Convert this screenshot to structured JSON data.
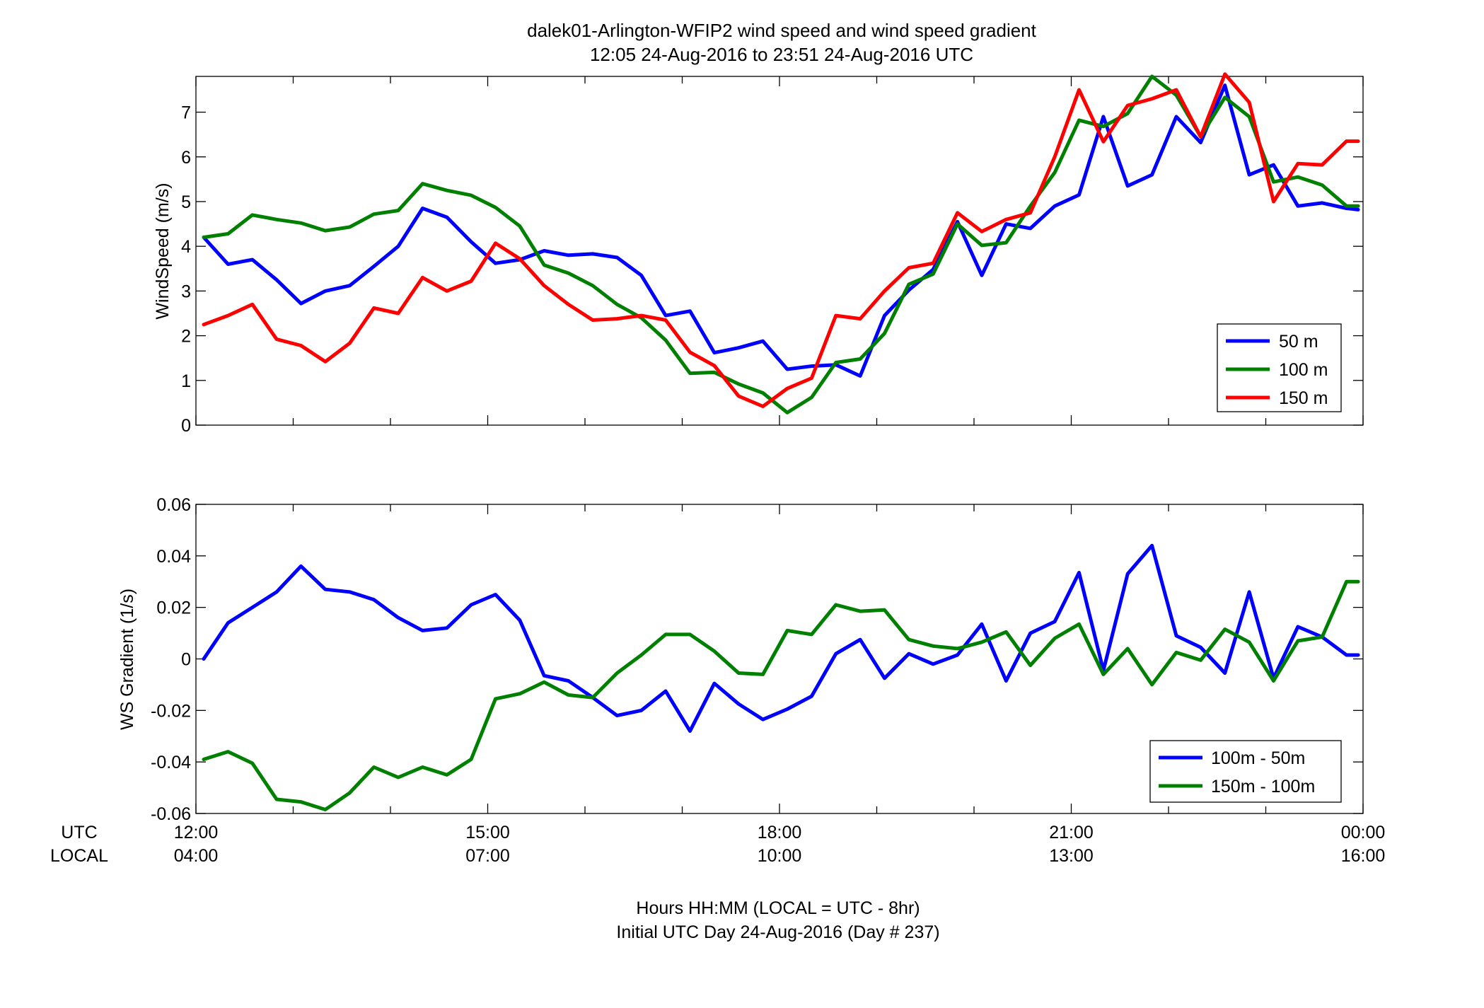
{
  "figure": {
    "title_line1": "dalek01-Arlington-WFIP2  wind speed and wind speed gradient",
    "title_line2": "12:05 24-Aug-2016 to 23:51 24-Aug-2016  UTC",
    "xlabel_line1": "Hours HH:MM  (LOCAL = UTC - 8hr)",
    "xlabel_line2": "Initial UTC Day 24-Aug-2016 (Day # 237)",
    "utc_label": "UTC",
    "local_label": "LOCAL",
    "x_ticks_utc": [
      "12:00",
      "15:00",
      "18:00",
      "21:00",
      "00:00"
    ],
    "x_ticks_local": [
      "04:00",
      "07:00",
      "10:00",
      "13:00",
      "16:00"
    ]
  },
  "chart_data": [
    {
      "type": "line",
      "ylabel": "WindSpeed (m/s)",
      "xlim": [
        12,
        24
      ],
      "ylim": [
        0,
        7.8
      ],
      "yticks": [
        0,
        1,
        2,
        3,
        4,
        5,
        6,
        7
      ],
      "ytick_labels": [
        "0",
        "1",
        "2",
        "3",
        "4",
        "5",
        "6",
        "7"
      ],
      "grid": false,
      "legend_position": "lower-right",
      "x": [
        12.08,
        12.33,
        12.58,
        12.83,
        13.08,
        13.33,
        13.58,
        13.83,
        14.08,
        14.33,
        14.58,
        14.83,
        15.08,
        15.33,
        15.58,
        15.83,
        16.08,
        16.33,
        16.58,
        16.83,
        17.08,
        17.33,
        17.58,
        17.83,
        18.08,
        18.33,
        18.58,
        18.83,
        19.08,
        19.33,
        19.58,
        19.83,
        20.08,
        20.33,
        20.58,
        20.83,
        21.08,
        21.33,
        21.58,
        21.83,
        22.08,
        22.33,
        22.58,
        22.83,
        23.08,
        23.33,
        23.58,
        23.83,
        23.95
      ],
      "series": [
        {
          "name": "50 m",
          "color": "#0000ff",
          "values": [
            4.2,
            3.6,
            3.7,
            3.25,
            2.72,
            3.0,
            3.12,
            3.55,
            4.0,
            4.85,
            4.65,
            4.1,
            3.62,
            3.7,
            3.9,
            3.8,
            3.83,
            3.75,
            3.35,
            2.45,
            2.55,
            1.62,
            1.73,
            1.88,
            1.25,
            1.32,
            1.35,
            1.1,
            2.45,
            3.02,
            3.48,
            4.55,
            3.35,
            4.5,
            4.4,
            4.9,
            5.15,
            6.9,
            5.35,
            5.6,
            6.9,
            6.32,
            7.6,
            5.6,
            5.82,
            4.9,
            4.97,
            4.85,
            4.82
          ]
        },
        {
          "name": "100 m",
          "color": "#008000",
          "values": [
            4.2,
            4.28,
            4.7,
            4.6,
            4.52,
            4.35,
            4.43,
            4.72,
            4.8,
            5.4,
            5.25,
            5.14,
            4.87,
            4.45,
            3.58,
            3.4,
            3.12,
            2.7,
            2.4,
            1.9,
            1.16,
            1.18,
            0.92,
            0.72,
            0.28,
            0.62,
            1.4,
            1.48,
            2.05,
            3.15,
            3.38,
            4.5,
            4.02,
            4.08,
            4.9,
            5.65,
            6.82,
            6.68,
            6.97,
            7.8,
            7.38,
            6.45,
            7.33,
            6.9,
            5.44,
            5.55,
            5.37,
            4.9,
            4.9
          ]
        },
        {
          "name": "150 m",
          "color": "#ff0000",
          "values": [
            2.25,
            2.45,
            2.7,
            1.92,
            1.78,
            1.42,
            1.83,
            2.62,
            2.5,
            3.3,
            3.0,
            3.22,
            4.07,
            3.72,
            3.12,
            2.7,
            2.35,
            2.38,
            2.45,
            2.35,
            1.63,
            1.33,
            0.65,
            0.42,
            0.82,
            1.05,
            2.45,
            2.38,
            3.0,
            3.52,
            3.62,
            4.75,
            4.33,
            4.6,
            4.75,
            6.0,
            7.5,
            6.34,
            7.15,
            7.3,
            7.5,
            6.45,
            7.85,
            7.22,
            5.0,
            5.85,
            5.82,
            6.35,
            6.35
          ]
        }
      ]
    },
    {
      "type": "line",
      "ylabel": "WS Gradient (1/s)",
      "xlim": [
        12,
        24
      ],
      "ylim": [
        -0.06,
        0.06
      ],
      "yticks": [
        -0.06,
        -0.04,
        -0.02,
        0,
        0.02,
        0.04,
        0.06
      ],
      "ytick_labels": [
        "-0.06",
        "-0.04",
        "-0.02",
        "0",
        "0.02",
        "0.04",
        "0.06"
      ],
      "grid": false,
      "legend_position": "lower-right",
      "x": [
        12.08,
        12.33,
        12.58,
        12.83,
        13.08,
        13.33,
        13.58,
        13.83,
        14.08,
        14.33,
        14.58,
        14.83,
        15.08,
        15.33,
        15.58,
        15.83,
        16.08,
        16.33,
        16.58,
        16.83,
        17.08,
        17.33,
        17.58,
        17.83,
        18.08,
        18.33,
        18.58,
        18.83,
        19.08,
        19.33,
        19.58,
        19.83,
        20.08,
        20.33,
        20.58,
        20.83,
        21.08,
        21.33,
        21.58,
        21.83,
        22.08,
        22.33,
        22.58,
        22.83,
        23.08,
        23.33,
        23.58,
        23.83,
        23.95
      ],
      "series": [
        {
          "name": "100m - 50m",
          "color": "#0000ff",
          "values": [
            0.0,
            0.014,
            0.02,
            0.026,
            0.036,
            0.027,
            0.026,
            0.023,
            0.016,
            0.011,
            0.012,
            0.021,
            0.025,
            0.015,
            -0.0065,
            -0.0085,
            -0.015,
            -0.022,
            -0.02,
            -0.0125,
            -0.028,
            -0.0095,
            -0.0175,
            -0.0235,
            -0.0195,
            -0.0145,
            0.002,
            0.0075,
            -0.0075,
            0.002,
            -0.002,
            0.0015,
            0.0135,
            -0.0085,
            0.01,
            0.0145,
            0.0335,
            -0.0045,
            0.033,
            0.044,
            0.009,
            0.0045,
            -0.0055,
            0.026,
            -0.0075,
            0.0125,
            0.0085,
            0.0015,
            0.0015
          ]
        },
        {
          "name": "150m - 100m",
          "color": "#008000",
          "values": [
            -0.039,
            -0.036,
            -0.0405,
            -0.0545,
            -0.0555,
            -0.0585,
            -0.052,
            -0.042,
            -0.046,
            -0.042,
            -0.045,
            -0.039,
            -0.0155,
            -0.0135,
            -0.009,
            -0.014,
            -0.015,
            -0.0055,
            0.0015,
            0.0095,
            0.0095,
            0.003,
            -0.0055,
            -0.006,
            0.011,
            0.0095,
            0.021,
            0.0185,
            0.019,
            0.0075,
            0.005,
            0.004,
            0.0065,
            0.0105,
            -0.0025,
            0.008,
            0.0135,
            -0.006,
            0.004,
            -0.01,
            0.0025,
            -0.0005,
            0.0115,
            0.0065,
            -0.0085,
            0.007,
            0.0085,
            0.03,
            0.03
          ]
        }
      ]
    }
  ]
}
